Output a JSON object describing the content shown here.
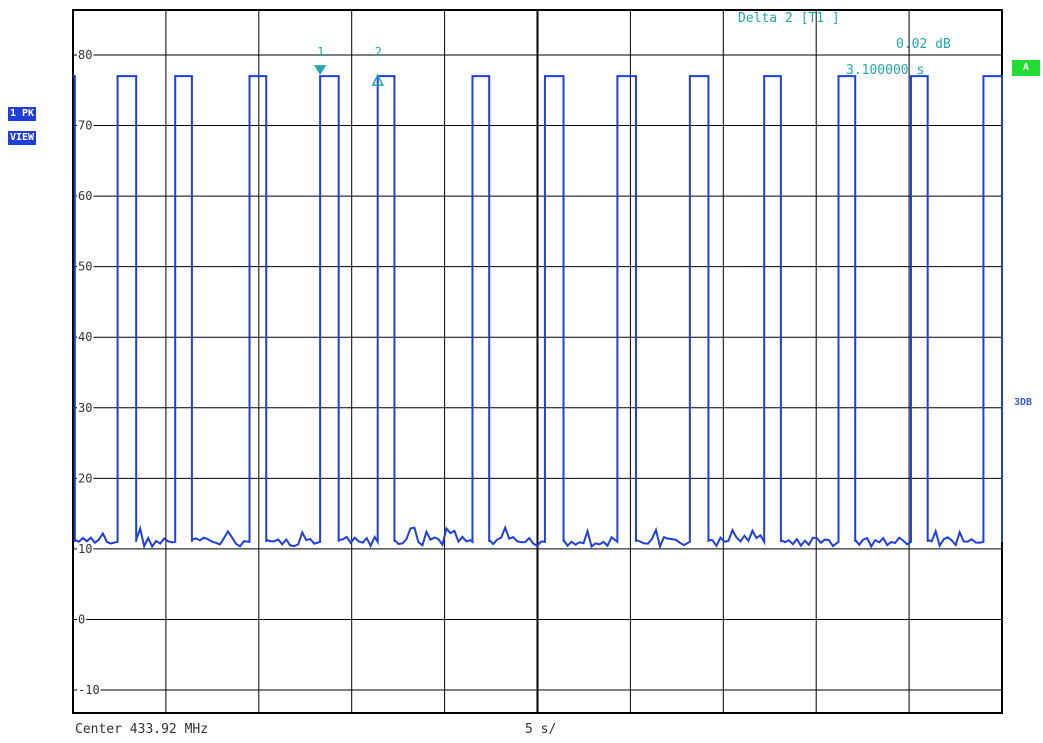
{
  "side": {
    "trace_mode": "1 PK",
    "view_mode": "VIEW",
    "trace_badge": "A",
    "right_note": "3DB"
  },
  "marker_readout": {
    "title": "Delta 2 [T1 ]",
    "level": "0.02 dB",
    "time": "3.100000 s"
  },
  "markers": [
    {
      "label": "1",
      "time_s": 13.3,
      "shape": "filled-down-triangle"
    },
    {
      "label": "2",
      "time_s": 16.4,
      "shape": "open-up-triangle"
    }
  ],
  "footer": {
    "center": "Center 433.92 MHz",
    "sweep": "5 s/"
  },
  "colors": {
    "trace": "#1f3fe0",
    "marker": "#22a7b0",
    "grid": "#000000",
    "badge_blue": "#1f3fd6",
    "badge_green": "#22dd33"
  },
  "chart_data": {
    "type": "line",
    "title": "",
    "xlabel": "",
    "ylabel": "",
    "xlim": [
      0,
      50
    ],
    "ylim": [
      -15,
      85
    ],
    "y_ticks": [
      "80",
      "70",
      "60",
      "50",
      "40",
      "30",
      "20",
      "10",
      "0",
      "-10"
    ],
    "y_tick_values": [
      80,
      70,
      60,
      50,
      40,
      30,
      20,
      10,
      0,
      -10
    ],
    "x_divisions": 10,
    "high_level": 77,
    "low_level": 11,
    "pulses": [
      [
        0.0,
        0.1
      ],
      [
        2.4,
        3.4
      ],
      [
        5.5,
        6.4
      ],
      [
        9.5,
        10.4
      ],
      [
        13.3,
        14.3
      ],
      [
        16.4,
        17.3
      ],
      [
        21.5,
        22.4
      ],
      [
        25.4,
        26.4
      ],
      [
        29.3,
        30.3
      ],
      [
        33.2,
        34.2
      ],
      [
        37.2,
        38.1
      ],
      [
        41.2,
        42.1
      ],
      [
        45.1,
        46.0
      ],
      [
        49.0,
        50.0
      ]
    ],
    "series": [
      {
        "values_description_free": true,
        "name": ""
      }
    ]
  }
}
